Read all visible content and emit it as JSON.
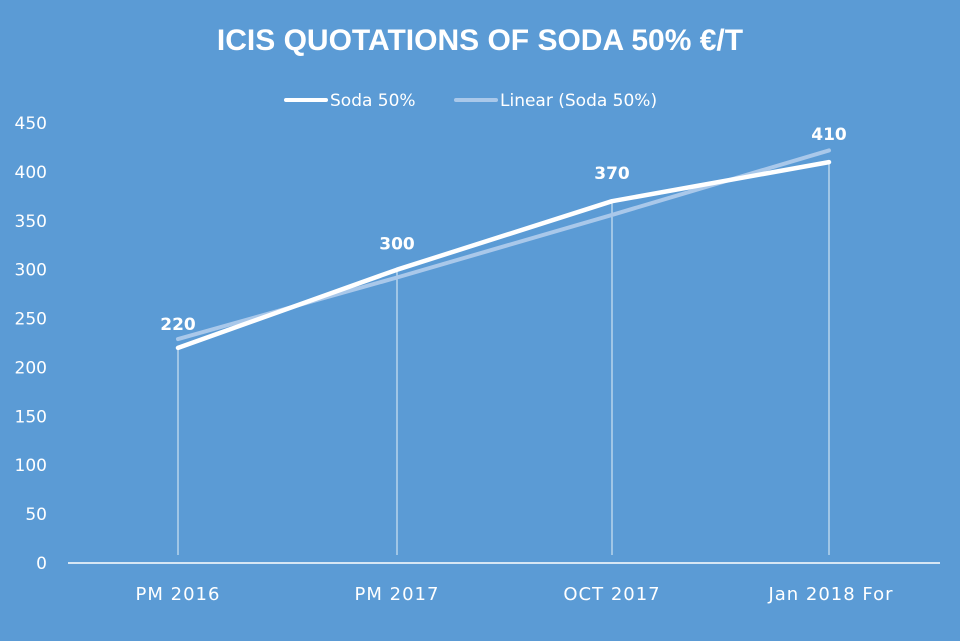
{
  "chart_data": {
    "type": "line",
    "title": "ICIS QUOTATIONS OF SODA 50% €/T",
    "categories": [
      "PM 2016",
      "PM 2017",
      "OCT 2017",
      "Jan 2018 For"
    ],
    "series": [
      {
        "name": "Soda 50%",
        "values": [
          220,
          300,
          370,
          410
        ],
        "color": "#ffffff"
      },
      {
        "name": "Linear (Soda 50%)",
        "values": [
          229,
          292,
          356,
          422
        ],
        "color": "#a9c8ea",
        "trendline": true
      }
    ],
    "data_labels": [
      "220",
      "300",
      "370",
      "410"
    ],
    "yticks": [
      0,
      50,
      100,
      150,
      200,
      250,
      300,
      350,
      400,
      450
    ],
    "ylim": [
      0,
      450
    ],
    "xlabel": "",
    "ylabel": "",
    "legend_position": "top-center",
    "background_color": "#5b9bd5",
    "grid": false
  }
}
